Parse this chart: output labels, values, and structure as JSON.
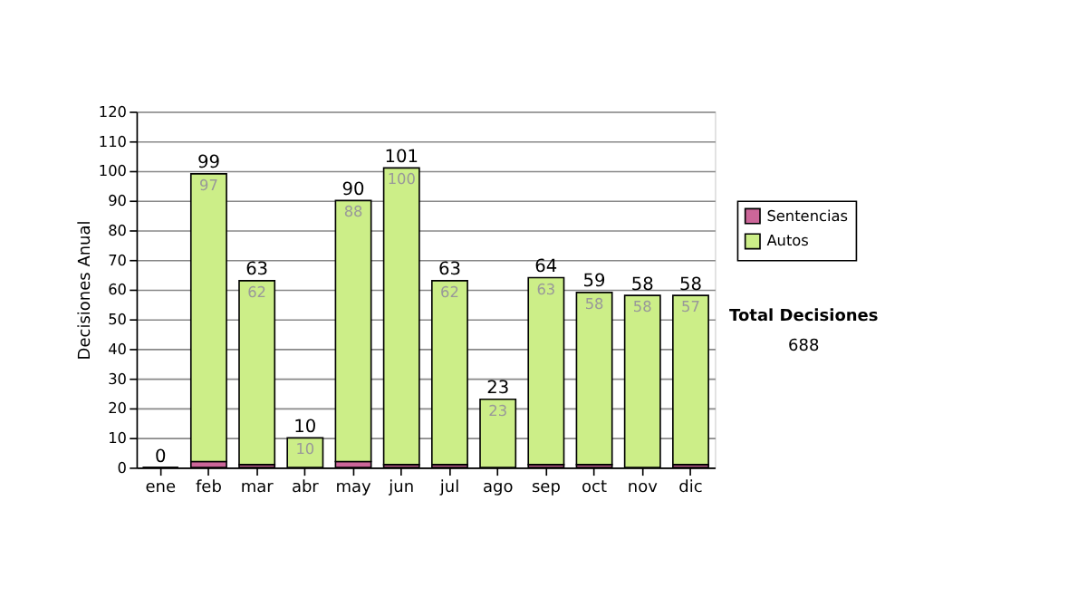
{
  "chart_data": {
    "type": "bar",
    "stacked": true,
    "ylabel": "Decisiones Anual",
    "categories": [
      "ene",
      "feb",
      "mar",
      "abr",
      "may",
      "jun",
      "jul",
      "ago",
      "sep",
      "oct",
      "nov",
      "dic"
    ],
    "series": [
      {
        "name": "Sentencias",
        "color": "#cc6699",
        "values": [
          0,
          2,
          1,
          0,
          2,
          1,
          1,
          0,
          1,
          1,
          0,
          1
        ]
      },
      {
        "name": "Autos",
        "color": "#ccee88",
        "values": [
          0,
          97,
          62,
          10,
          88,
          100,
          62,
          23,
          63,
          58,
          58,
          57
        ],
        "value_labels": [
          null,
          "97",
          "62",
          "10",
          "88",
          "100",
          "62",
          "23",
          "63",
          "58",
          "58",
          "57"
        ]
      }
    ],
    "totals": [
      "0",
      "99",
      "63",
      "10",
      "90",
      "101",
      "63",
      "23",
      "64",
      "59",
      "58",
      "58"
    ],
    "ylim": [
      0,
      120
    ],
    "yticks": [
      0,
      10,
      20,
      30,
      40,
      50,
      60,
      70,
      80,
      90,
      100,
      110,
      120
    ],
    "grid": "y",
    "legend": "right",
    "annotations": [
      "Total Decisiones",
      "688"
    ]
  }
}
